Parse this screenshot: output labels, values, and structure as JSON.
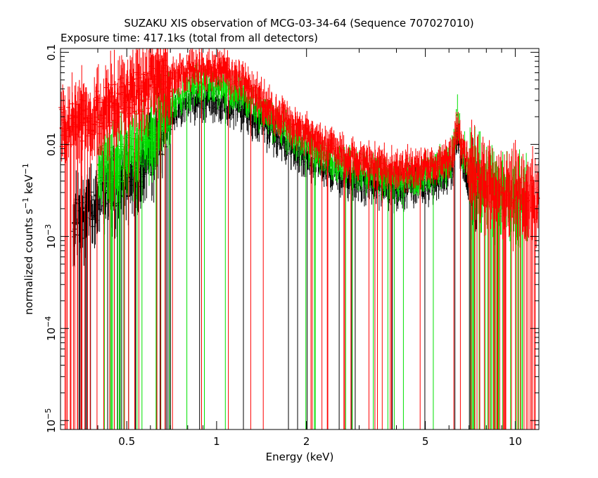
{
  "chart_data": {
    "type": "scatter",
    "title": "SUZAKU XIS observation of MCG-03-34-64 (Sequence 707027010)",
    "subtitle": "Exposure time: 417.1ks (total from all detectors)",
    "xlabel": "Energy (keV)",
    "ylabel": {
      "main": "normalized counts s",
      "sup1": "−1",
      "mid": " keV",
      "sup2": "−1"
    },
    "xscale": "log",
    "yscale": "log",
    "xlim": [
      0.3,
      12
    ],
    "ylim": [
      8e-06,
      0.11
    ],
    "x_ticks": [
      {
        "value": 0.5,
        "label": "0.5"
      },
      {
        "value": 1,
        "label": "1"
      },
      {
        "value": 2,
        "label": "2"
      },
      {
        "value": 5,
        "label": "5"
      },
      {
        "value": 10,
        "label": "10"
      }
    ],
    "y_ticks": [
      {
        "value": 0.1,
        "base": "0.1",
        "exp": ""
      },
      {
        "value": 0.01,
        "base": "0.01",
        "exp": ""
      },
      {
        "value": 0.001,
        "base": "10",
        "exp": "−3"
      },
      {
        "value": 0.0001,
        "base": "10",
        "exp": "−4"
      },
      {
        "value": 1e-05,
        "base": "10",
        "exp": "−5"
      }
    ],
    "grid": false,
    "legend": "none",
    "series": [
      {
        "color": "#000000",
        "x": [
          0.33,
          0.38,
          0.42,
          0.46,
          0.5,
          0.55,
          0.6,
          0.65,
          0.7,
          0.75,
          0.8,
          0.85,
          0.9,
          0.95,
          1.0,
          1.1,
          1.2,
          1.3,
          1.4,
          1.5,
          1.6,
          1.7,
          1.8,
          2.0,
          2.2,
          2.5,
          2.8,
          3.0,
          3.5,
          4.0,
          4.5,
          5.0,
          5.5,
          6.0,
          6.2,
          6.4,
          6.6,
          7.0,
          7.5
        ],
        "y": [
          0.0014,
          0.0018,
          0.003,
          0.0035,
          0.004,
          0.005,
          0.007,
          0.012,
          0.02,
          0.025,
          0.028,
          0.03,
          0.03,
          0.031,
          0.03,
          0.028,
          0.025,
          0.02,
          0.017,
          0.014,
          0.012,
          0.01,
          0.009,
          0.007,
          0.006,
          0.005,
          0.0042,
          0.004,
          0.0035,
          0.0032,
          0.0033,
          0.0036,
          0.004,
          0.0045,
          0.006,
          0.015,
          0.007,
          0.004,
          0.003
        ]
      },
      {
        "color": "#00e000",
        "x": [
          0.4,
          0.45,
          0.5,
          0.55,
          0.6,
          0.65,
          0.7,
          0.75,
          0.8,
          0.85,
          0.9,
          0.95,
          1.0,
          1.1,
          1.2,
          1.3,
          1.4,
          1.5,
          1.6,
          1.7,
          1.8,
          2.0,
          2.2,
          2.5,
          2.8,
          3.0,
          3.5,
          4.0,
          4.5,
          5.0,
          5.5,
          6.0,
          6.2,
          6.4,
          6.6,
          7.0,
          7.5,
          8.0,
          9.0,
          10.0,
          11.0
        ],
        "y": [
          0.006,
          0.0065,
          0.007,
          0.009,
          0.012,
          0.017,
          0.025,
          0.032,
          0.038,
          0.042,
          0.045,
          0.045,
          0.043,
          0.04,
          0.034,
          0.028,
          0.022,
          0.019,
          0.016,
          0.014,
          0.012,
          0.0095,
          0.0078,
          0.0064,
          0.0055,
          0.005,
          0.0045,
          0.0042,
          0.0043,
          0.0047,
          0.0052,
          0.0062,
          0.0085,
          0.021,
          0.0095,
          0.0055,
          0.004,
          0.0033,
          0.0028,
          0.0025,
          0.0024
        ]
      },
      {
        "color": "#ff0000",
        "x": [
          0.3,
          0.33,
          0.36,
          0.4,
          0.45,
          0.5,
          0.55,
          0.6,
          0.65,
          0.7,
          0.75,
          0.8,
          0.85,
          0.9,
          0.95,
          1.0,
          1.1,
          1.2,
          1.3,
          1.4,
          1.5,
          1.6,
          1.7,
          1.8,
          2.0,
          2.2,
          2.5,
          2.8,
          3.0,
          3.5,
          4.0,
          4.5,
          5.0,
          5.5,
          6.0,
          6.2,
          6.4,
          6.6,
          7.0,
          7.5,
          8.0,
          9.0,
          10.0,
          11.0,
          12.0
        ],
        "y": [
          0.015,
          0.017,
          0.019,
          0.022,
          0.028,
          0.033,
          0.038,
          0.043,
          0.048,
          0.052,
          0.056,
          0.06,
          0.064,
          0.066,
          0.066,
          0.065,
          0.058,
          0.048,
          0.04,
          0.032,
          0.026,
          0.022,
          0.019,
          0.016,
          0.013,
          0.0105,
          0.0085,
          0.0072,
          0.0065,
          0.0058,
          0.0054,
          0.0055,
          0.0058,
          0.0063,
          0.007,
          0.009,
          0.016,
          0.009,
          0.0058,
          0.0042,
          0.0035,
          0.003,
          0.0027,
          0.0026,
          0.0026
        ]
      }
    ]
  }
}
